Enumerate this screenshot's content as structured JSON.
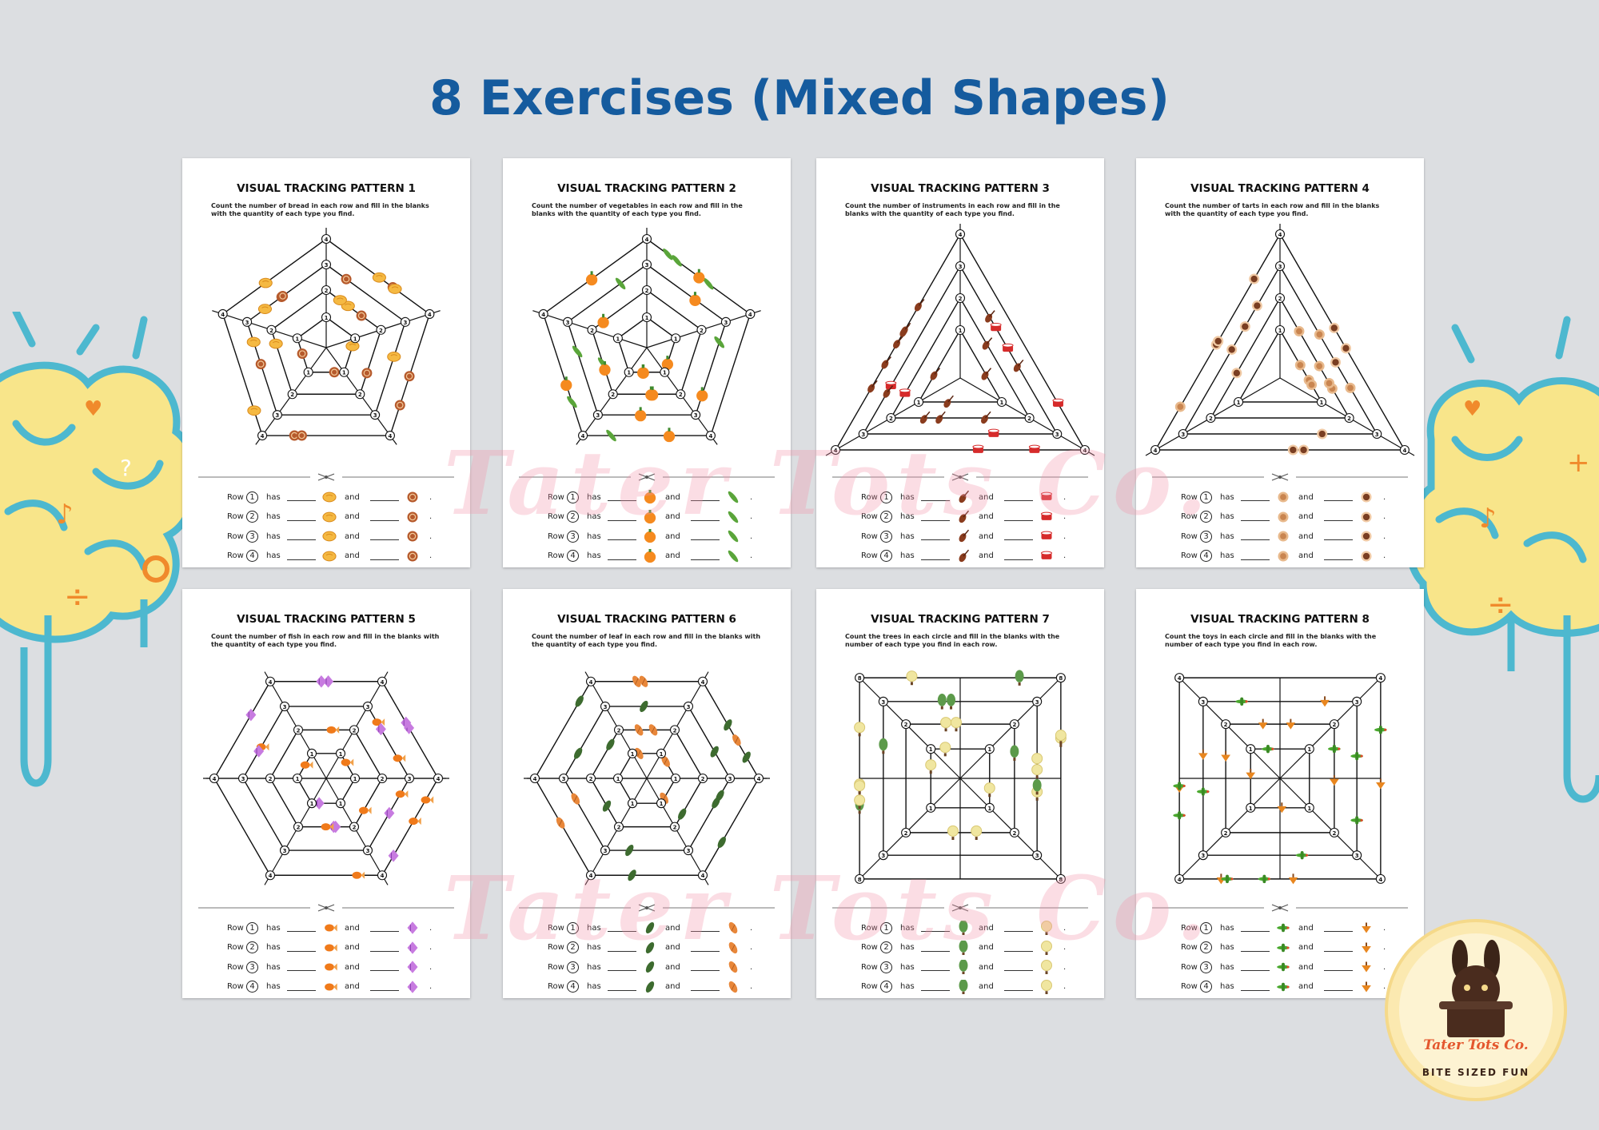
{
  "page_title": "8 Exercises (Mixed Shapes)",
  "watermark": "Tater Tots Co.",
  "row_words": {
    "row": "Row",
    "has": "has",
    "and": "and"
  },
  "logo": {
    "brand": "Tater Tots Co.",
    "tagline": "BITE SIZED FUN"
  },
  "colors": {
    "title": "#155b9e",
    "background": "#dcdee1",
    "brain_yellow": "#f8e58a",
    "brain_blue": "#4db8cf",
    "orange": "#f08a2c"
  },
  "cards": [
    {
      "title": "VISUAL TRACKING PATTERN 1",
      "instruction": "Count the number of bread in each row and fill in the blanks with the quantity of each type you find.",
      "shape": "pentagon",
      "icons": [
        "bread-icon",
        "snail-bun-icon"
      ],
      "rings": [
        "1",
        "2",
        "3",
        "4"
      ]
    },
    {
      "title": "VISUAL TRACKING PATTERN 2",
      "instruction": "Count the number of vegetables in each row and fill in the blanks with the quantity of each type you find.",
      "shape": "pentagon",
      "icons": [
        "pepper-icon",
        "cucumber-icon"
      ],
      "rings": [
        "1",
        "2",
        "3",
        "4"
      ]
    },
    {
      "title": "VISUAL TRACKING PATTERN 3",
      "instruction": "Count the number of instruments in each row and fill in the blanks with the quantity of each type you find.",
      "shape": "triangle",
      "icons": [
        "violin-icon",
        "drum-icon"
      ],
      "rings": [
        "1",
        "2",
        "3",
        "4"
      ]
    },
    {
      "title": "VISUAL TRACKING PATTERN 4",
      "instruction": "Count the number of tarts in each row and fill in the blanks with the quantity of each type you find.",
      "shape": "triangle",
      "icons": [
        "tart-icon",
        "chocolate-tart-icon"
      ],
      "rings": [
        "1",
        "2",
        "3",
        "4"
      ]
    },
    {
      "title": "VISUAL TRACKING PATTERN 5",
      "instruction": "Count the number of fish in each row and fill in the blanks with the quantity of each type you find.",
      "shape": "hexagon",
      "icons": [
        "goldfish-icon",
        "angelfish-icon"
      ],
      "rings": [
        "1",
        "2",
        "3",
        "4"
      ]
    },
    {
      "title": "VISUAL TRACKING PATTERN 6",
      "instruction": "Count the number of leaf in each row and fill in the blanks with the quantity of each type you find.",
      "shape": "hexagon",
      "icons": [
        "green-leaf-icon",
        "oak-leaf-icon"
      ],
      "rings": [
        "1",
        "2",
        "3",
        "4"
      ]
    },
    {
      "title": "VISUAL TRACKING PATTERN 7",
      "instruction": "Count the trees in each circle and fill in the blanks with the number of each type you find in each row.",
      "shape": "square",
      "icons": [
        "green-tree-icon",
        "yellow-tree-icon"
      ],
      "rings": [
        "1",
        "2",
        "3",
        "4"
      ],
      "corner": "8"
    },
    {
      "title": "VISUAL TRACKING PATTERN 8",
      "instruction": "Count the toys in each circle and fill in the blanks with the number of each type you find in each row.",
      "shape": "square",
      "icons": [
        "toy-plane-icon",
        "spinning-top-icon"
      ],
      "rings": [
        "1",
        "2",
        "3",
        "4"
      ],
      "corner": "4"
    }
  ]
}
